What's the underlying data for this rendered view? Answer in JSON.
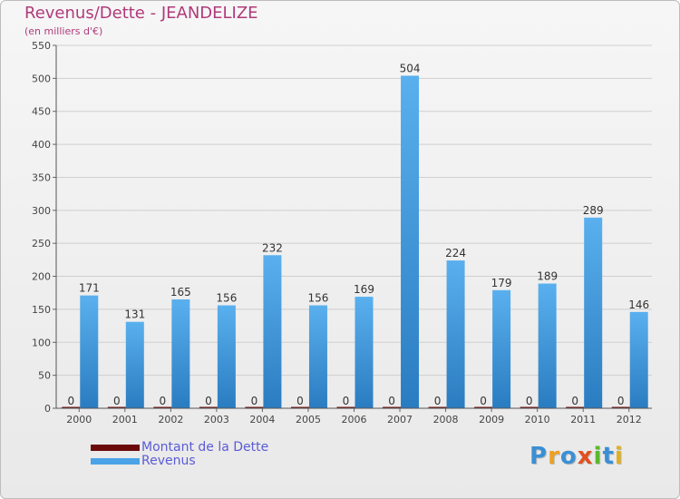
{
  "title": "Revenus/Dette - JEANDELIZE",
  "subtitle": "(en milliers d'€)",
  "colors": {
    "dette": "#6b0a0a",
    "revenus": "#4aa3e6",
    "revenus_dark": "#2a7cc0",
    "grid": "#cfcfcf",
    "axis_text": "#444444"
  },
  "legend": {
    "items": [
      {
        "label": "Montant de la Dette",
        "color": "#6b0a0a"
      },
      {
        "label": "Revenus",
        "color": "#4aa3e6"
      }
    ]
  },
  "logo": {
    "letters": [
      {
        "ch": "P",
        "color": "#3b8fd4"
      },
      {
        "ch": "r",
        "color": "#f0a020"
      },
      {
        "ch": "o",
        "color": "#3b8fd4"
      },
      {
        "ch": "x",
        "color": "#e05020"
      },
      {
        "ch": "i",
        "color": "#5cb82e"
      },
      {
        "ch": "t",
        "color": "#3b8fd4"
      },
      {
        "ch": "i",
        "color": "#e0b020"
      }
    ]
  },
  "chart_data": {
    "type": "bar",
    "title": "Revenus/Dette - JEANDELIZE",
    "subtitle": "(en milliers d'€)",
    "categories": [
      "2000",
      "2001",
      "2002",
      "2003",
      "2004",
      "2005",
      "2006",
      "2007",
      "2008",
      "2009",
      "2010",
      "2011",
      "2012"
    ],
    "series": [
      {
        "name": "Montant de la Dette",
        "values": [
          0,
          0,
          0,
          0,
          0,
          0,
          0,
          0,
          0,
          0,
          0,
          0,
          0
        ]
      },
      {
        "name": "Revenus",
        "values": [
          171,
          131,
          165,
          156,
          232,
          156,
          169,
          504,
          224,
          179,
          189,
          289,
          146
        ]
      }
    ],
    "ylim": [
      0,
      550
    ],
    "yticks": [
      0,
      50,
      100,
      150,
      200,
      250,
      300,
      350,
      400,
      450,
      500,
      550
    ],
    "grid": true,
    "legend_position": "bottom-left"
  }
}
